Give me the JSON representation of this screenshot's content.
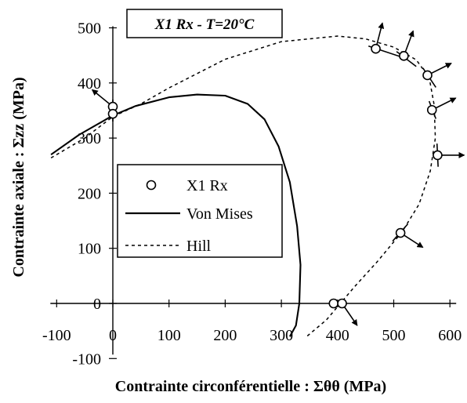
{
  "chart_data": {
    "type": "scatter",
    "title": "X1 Rx  - T=20°C",
    "xlabel": "Contrainte circonférentielle : Σθθ (MPa)",
    "ylabel": "Contrainte axiale : Σzz (MPa)",
    "xlim": [
      -100,
      600
    ],
    "ylim": [
      -100,
      500
    ],
    "x_ticks": [
      -100,
      0,
      100,
      200,
      300,
      400,
      500,
      600
    ],
    "y_ticks": [
      -100,
      0,
      100,
      200,
      300,
      400,
      500
    ],
    "x_tick_labels": [
      "-100",
      "0",
      "100",
      "200",
      "300",
      "400",
      "500",
      "600"
    ],
    "y_tick_labels": [
      "-100",
      "0",
      "100",
      "200",
      "300",
      "400",
      "500"
    ],
    "grid": false,
    "legend_position": "center-left",
    "series": [
      {
        "name": "X1 Rx",
        "kind": "points",
        "marker": "open-circle",
        "points": [
          {
            "x": 0,
            "y": 357,
            "normal": [
              -0.55,
              0.45
            ]
          },
          {
            "x": 0,
            "y": 344,
            "normal": null
          },
          {
            "x": 468,
            "y": 462,
            "normal": [
              0.25,
              0.97
            ]
          },
          {
            "x": 518,
            "y": 449,
            "normal": [
              0.35,
              0.94
            ]
          },
          {
            "x": 560,
            "y": 414,
            "normal": [
              0.9,
              0.45
            ]
          },
          {
            "x": 568,
            "y": 351,
            "normal": [
              0.9,
              0.45
            ]
          },
          {
            "x": 578,
            "y": 269,
            "normal": [
              1.0,
              0.0
            ]
          },
          {
            "x": 512,
            "y": 128,
            "normal": [
              0.85,
              -0.55
            ]
          },
          {
            "x": 393,
            "y": 0,
            "normal": null
          },
          {
            "x": 408,
            "y": 0,
            "normal": [
              0.55,
              -0.8
            ]
          }
        ]
      },
      {
        "name": "Von Mises",
        "kind": "line",
        "style": "solid",
        "points": [
          {
            "x": -110,
            "y": 270
          },
          {
            "x": -60,
            "y": 306
          },
          {
            "x": 0,
            "y": 341
          },
          {
            "x": 40,
            "y": 358
          },
          {
            "x": 100,
            "y": 374
          },
          {
            "x": 150,
            "y": 379
          },
          {
            "x": 200,
            "y": 377
          },
          {
            "x": 240,
            "y": 362
          },
          {
            "x": 270,
            "y": 334
          },
          {
            "x": 295,
            "y": 285
          },
          {
            "x": 315,
            "y": 220
          },
          {
            "x": 328,
            "y": 140
          },
          {
            "x": 334,
            "y": 70
          },
          {
            "x": 332,
            "y": 0
          },
          {
            "x": 326,
            "y": -40
          },
          {
            "x": 315,
            "y": -60
          }
        ]
      },
      {
        "name": "Hill",
        "kind": "line",
        "style": "dashed",
        "points": [
          {
            "x": -110,
            "y": 264
          },
          {
            "x": -50,
            "y": 300
          },
          {
            "x": 0,
            "y": 339
          },
          {
            "x": 50,
            "y": 362
          },
          {
            "x": 100,
            "y": 391
          },
          {
            "x": 200,
            "y": 443
          },
          {
            "x": 300,
            "y": 475
          },
          {
            "x": 400,
            "y": 485
          },
          {
            "x": 450,
            "y": 480
          },
          {
            "x": 500,
            "y": 465
          },
          {
            "x": 540,
            "y": 442
          },
          {
            "x": 563,
            "y": 410
          },
          {
            "x": 572,
            "y": 360
          },
          {
            "x": 574,
            "y": 300
          },
          {
            "x": 565,
            "y": 240
          },
          {
            "x": 545,
            "y": 180
          },
          {
            "x": 515,
            "y": 130
          },
          {
            "x": 470,
            "y": 75
          },
          {
            "x": 430,
            "y": 30
          },
          {
            "x": 405,
            "y": 0
          },
          {
            "x": 380,
            "y": -30
          },
          {
            "x": 345,
            "y": -60
          }
        ]
      },
      {
        "name": "",
        "kind": "tangent-segments",
        "style": "solid",
        "segments": [
          [
            {
              "x": 455,
              "y": 467
            },
            {
              "x": 520,
              "y": 445
            }
          ],
          [
            {
              "x": 505,
              "y": 457
            },
            {
              "x": 540,
              "y": 430
            }
          ],
          [
            {
              "x": 552,
              "y": 427
            },
            {
              "x": 575,
              "y": 392
            }
          ],
          [
            {
              "x": 563,
              "y": 367
            },
            {
              "x": 575,
              "y": 335
            }
          ],
          [
            {
              "x": 577,
              "y": 290
            },
            {
              "x": 579,
              "y": 248
            }
          ],
          [
            {
              "x": 498,
              "y": 113
            },
            {
              "x": 525,
              "y": 144
            }
          ],
          [
            {
              "x": 0,
              "y": 330
            },
            {
              "x": 0,
              "y": 370
            }
          ]
        ]
      }
    ]
  }
}
